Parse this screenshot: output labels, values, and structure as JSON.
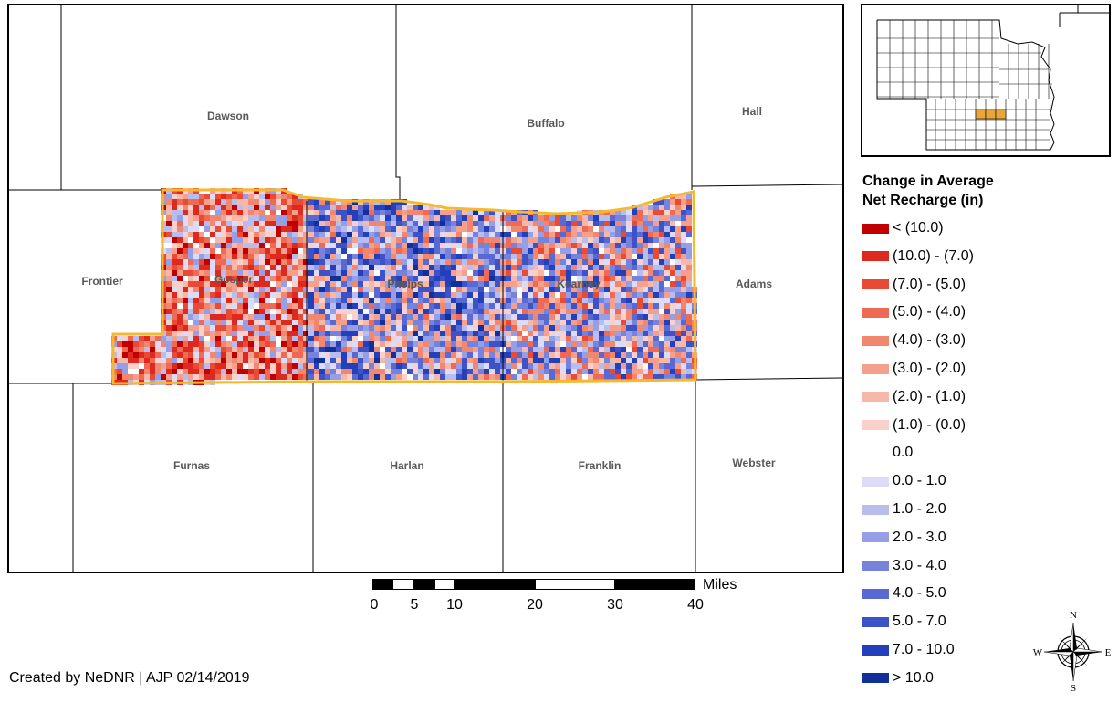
{
  "counties": {
    "dawson": "Dawson",
    "buffalo": "Buffalo",
    "hall": "Hall",
    "frontier": "Frontier",
    "gosper": "Gosper",
    "phelps": "Phelps",
    "kearney": "Kearney",
    "adams": "Adams",
    "furnas": "Furnas",
    "harlan": "Harlan",
    "franklin": "Franklin",
    "webster": "Webster"
  },
  "legend": {
    "title_line1": "Change in Average",
    "title_line2": "Net Recharge (in)",
    "items": [
      {
        "label": "< (10.0)",
        "color": "#c00000"
      },
      {
        "label": "(10.0) - (7.0)",
        "color": "#de2a1e"
      },
      {
        "label": "(7.0) - (5.0)",
        "color": "#e84a34"
      },
      {
        "label": "(5.0) - (4.0)",
        "color": "#ee6a54"
      },
      {
        "label": "(4.0) - (3.0)",
        "color": "#f2876f"
      },
      {
        "label": "(3.0) - (2.0)",
        "color": "#f5a08c"
      },
      {
        "label": "(2.0) - (1.0)",
        "color": "#f7b8aa"
      },
      {
        "label": "(1.0) - (0.0)",
        "color": "#fad1ca"
      },
      {
        "label": "0.0",
        "color": "#ffffff"
      },
      {
        "label": "0.0 - 1.0",
        "color": "#dcdcf8"
      },
      {
        "label": "1.0 - 2.0",
        "color": "#b9bdee"
      },
      {
        "label": "2.0 - 3.0",
        "color": "#969ee6"
      },
      {
        "label": "3.0 - 4.0",
        "color": "#7683dd"
      },
      {
        "label": "4.0 - 5.0",
        "color": "#5869d4"
      },
      {
        "label": "5.0 - 7.0",
        "color": "#3e52c8"
      },
      {
        "label": "7.0 - 10.0",
        "color": "#233fb9"
      },
      {
        "label": "> 10.0",
        "color": "#123099"
      }
    ]
  },
  "scale_bar": {
    "unit": "Miles",
    "ticks": [
      "0",
      "5",
      "10",
      "20",
      "30",
      "40"
    ]
  },
  "north_arrow": {
    "n": "N",
    "s": "S",
    "e": "E",
    "w": "W"
  },
  "credit": "Created by NeDNR | AJP 02/14/2019",
  "colors": {
    "study_area_outline": "#f5b82e",
    "inset_highlight": "#e8a63a",
    "county_label": "#595959"
  }
}
